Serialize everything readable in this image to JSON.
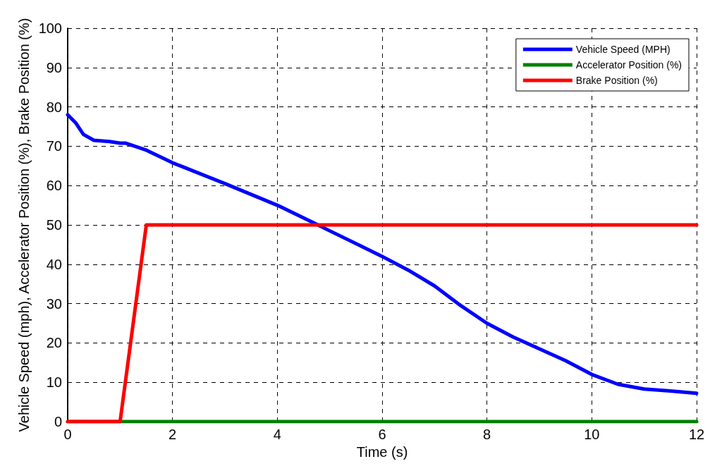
{
  "chart_data": {
    "type": "line",
    "xlabel": "Time (s)",
    "ylabel": "Vehicle Speed (mph), Accelerator Position (%), Brake Position (%)",
    "xlim": [
      0,
      12
    ],
    "xticks": [
      0,
      2,
      4,
      6,
      8,
      10,
      12
    ],
    "ylim": [
      0,
      100
    ],
    "yticks": [
      0,
      10,
      20,
      30,
      40,
      50,
      60,
      70,
      80,
      90,
      100
    ],
    "grid": true,
    "legend": "top right",
    "marker": "none",
    "line_style": "solid",
    "series": [
      {
        "name": "Vehicle Speed (MPH)",
        "color": "#0000ff",
        "x": [
          0,
          0.15,
          0.3,
          0.5,
          0.8,
          1,
          1.1,
          1.5,
          2,
          3,
          4,
          4.7,
          5,
          6,
          6.5,
          7,
          7.5,
          8,
          8.5,
          9,
          9.5,
          10,
          10.5,
          11,
          11.5,
          12
        ],
        "values": [
          78,
          76,
          73,
          71.5,
          71.2,
          70.8,
          70.8,
          69,
          65.8,
          60.5,
          55,
          50.5,
          48.5,
          42,
          38.5,
          34.5,
          29.5,
          25,
          21.5,
          18.5,
          15.5,
          12,
          9.5,
          8.3,
          7.8,
          7.2
        ]
      },
      {
        "name": "Accelerator Position (%)",
        "color": "#008000",
        "x": [
          0,
          12
        ],
        "values": [
          0,
          0
        ]
      },
      {
        "name": "Brake Position (%)",
        "color": "#ff0000",
        "x": [
          0,
          1,
          1.5,
          12
        ],
        "values": [
          0,
          0,
          50,
          50
        ]
      }
    ]
  }
}
